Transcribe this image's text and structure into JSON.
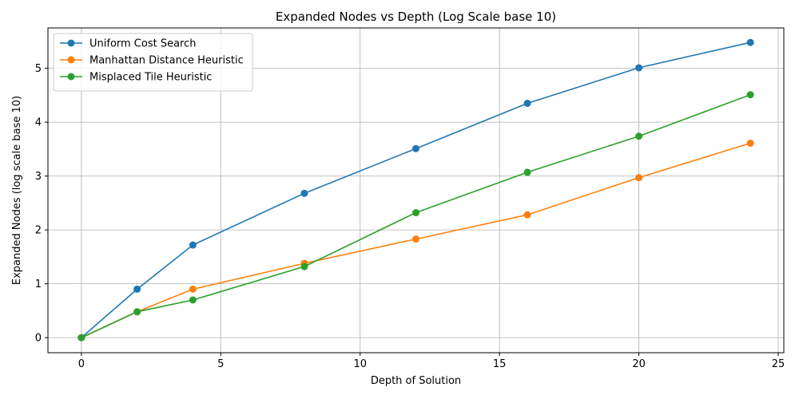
{
  "chart_data": {
    "type": "line",
    "title": "Expanded Nodes vs Depth (Log Scale base 10)",
    "xlabel": "Depth of Solution",
    "ylabel": "Expanded Nodes (log scale base 10)",
    "xlim": [
      -1.2,
      25.2
    ],
    "ylim": [
      -0.28,
      5.75
    ],
    "xticks": [
      0,
      5,
      10,
      15,
      20,
      25
    ],
    "yticks": [
      0,
      1,
      2,
      3,
      4,
      5
    ],
    "grid": true,
    "legend_position": "top-left",
    "x": [
      0,
      2,
      4,
      8,
      12,
      16,
      20,
      24
    ],
    "series": [
      {
        "name": "Uniform Cost Search",
        "color": "#1f77b4",
        "values": [
          0,
          0.9,
          1.72,
          2.68,
          3.51,
          4.35,
          5.01,
          5.48
        ]
      },
      {
        "name": "Manhattan Distance Heuristic",
        "color": "#ff7f0e",
        "values": [
          0,
          0.48,
          0.9,
          1.38,
          1.83,
          2.28,
          2.97,
          3.61
        ]
      },
      {
        "name": "Misplaced Tile Heuristic",
        "color": "#2ca02c",
        "values": [
          0,
          0.48,
          0.7,
          1.32,
          2.32,
          3.07,
          3.74,
          4.51
        ]
      }
    ]
  }
}
